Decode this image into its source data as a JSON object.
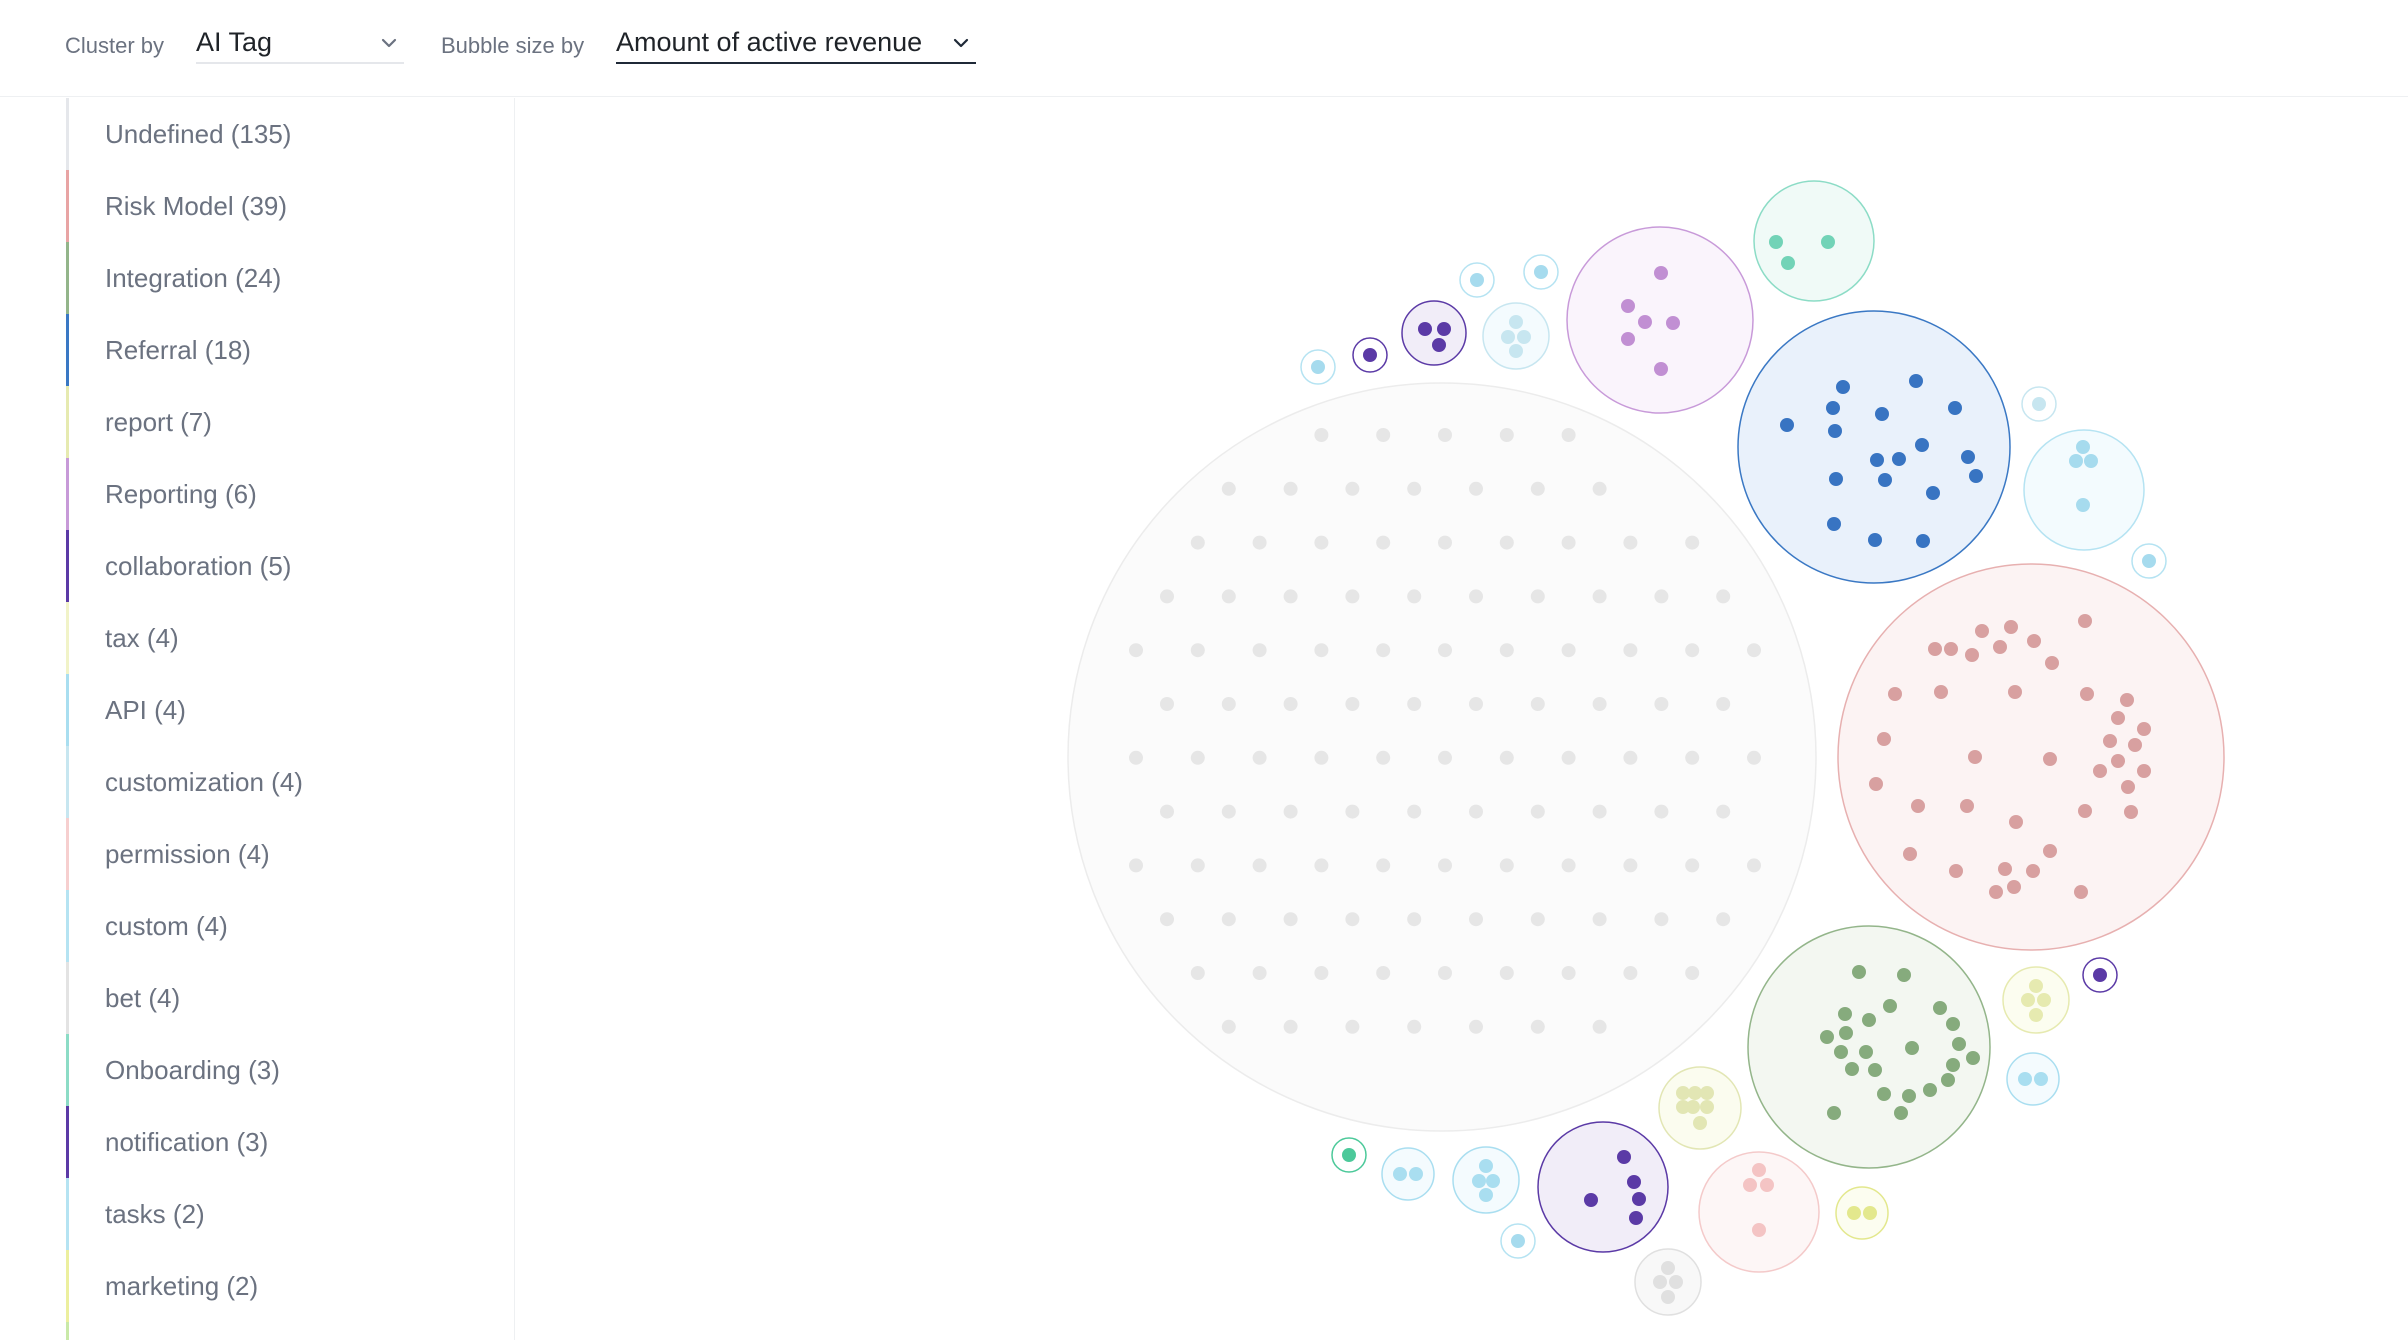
{
  "toolbar": {
    "cluster_label": "Cluster by",
    "cluster_value": "AI Tag",
    "size_label": "Bubble size by",
    "size_value": "Amount of active revenue"
  },
  "legend": [
    {
      "label": "Undefined (135)",
      "color": "#e5e7eb"
    },
    {
      "label": "Risk Model (39)",
      "color": "#e8a4a4"
    },
    {
      "label": "Integration (24)",
      "color": "#93b58a"
    },
    {
      "label": "Referral (18)",
      "color": "#3a78c4"
    },
    {
      "label": "report (7)",
      "color": "#e6eab0"
    },
    {
      "label": "Reporting (6)",
      "color": "#c79ad8"
    },
    {
      "label": "collaboration (5)",
      "color": "#5b3aa6"
    },
    {
      "label": "tax (4)",
      "color": "#f1f3c8"
    },
    {
      "label": "API (4)",
      "color": "#a9def0"
    },
    {
      "label": "customization (4)",
      "color": "#c7e6f0"
    },
    {
      "label": "permission (4)",
      "color": "#f6cfcf"
    },
    {
      "label": "custom (4)",
      "color": "#b5e3f2"
    },
    {
      "label": "bet (4)",
      "color": "#e3e3e3"
    },
    {
      "label": "Onboarding (3)",
      "color": "#8cdcc6"
    },
    {
      "label": "notification (3)",
      "color": "#5b3aa6"
    },
    {
      "label": "tasks (2)",
      "color": "#b5e3f2"
    },
    {
      "label": "marketing (2)",
      "color": "#ecef9e"
    }
  ],
  "colors": {
    "accent": "#1f2937",
    "muted_text": "#6b7280",
    "divider": "#eef0f2"
  },
  "icons": {
    "dropdown": "chevron-down-icon"
  }
}
